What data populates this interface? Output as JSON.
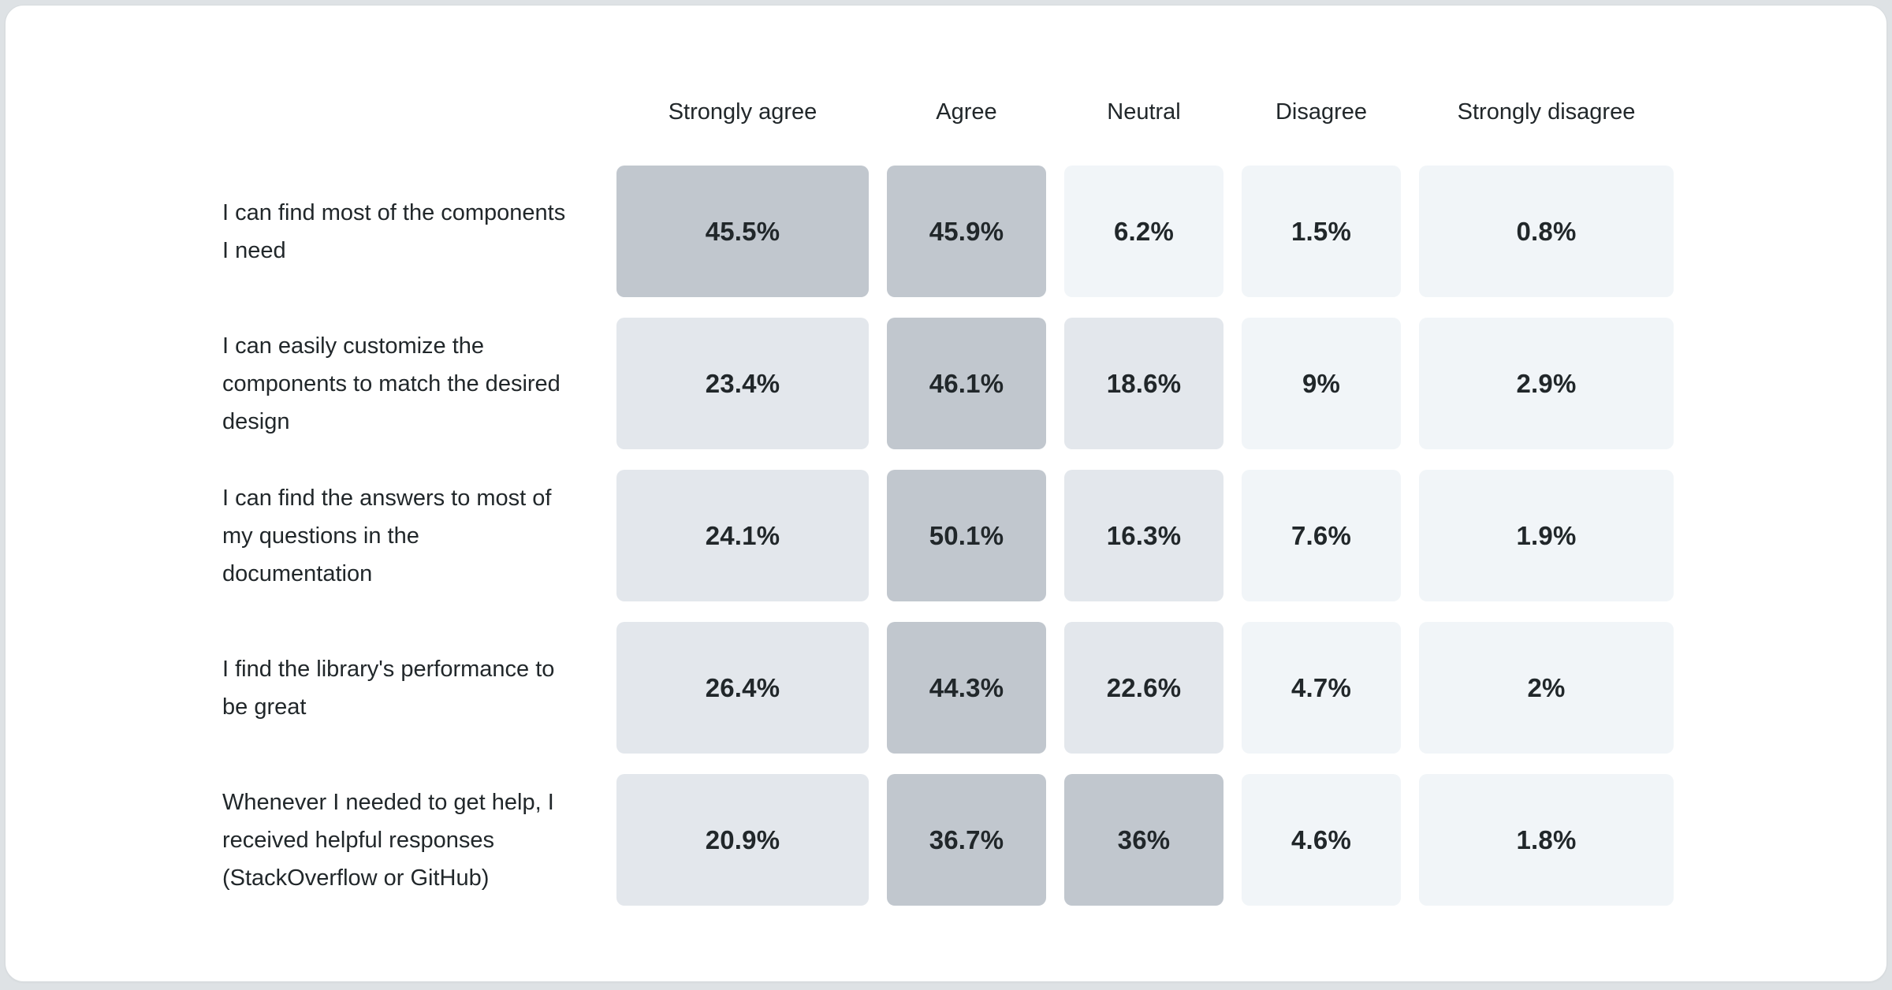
{
  "colors": {
    "page_bg": "#dee2e5",
    "card_bg": "#ffffff",
    "card_border": "#d8dcdf",
    "text": "#21272a"
  },
  "chart_data": {
    "type": "heatmap",
    "title": "",
    "columns": [
      "Strongly agree",
      "Agree",
      "Neutral",
      "Disagree",
      "Strongly disagree"
    ],
    "color_scale": {
      "note": "cell shade bins by percentage value, darker = higher",
      "bins": [
        {
          "min": 30,
          "color": "#c1c7ce"
        },
        {
          "min": 12,
          "color": "#e3e7ec"
        },
        {
          "min": 0,
          "color": "#f1f5f8"
        }
      ]
    },
    "rows": [
      {
        "label": "I can find most of the components I need",
        "values": [
          {
            "display": "45.5%",
            "value": 45.5
          },
          {
            "display": "45.9%",
            "value": 45.9
          },
          {
            "display": "6.2%",
            "value": 6.2
          },
          {
            "display": "1.5%",
            "value": 1.5
          },
          {
            "display": "0.8%",
            "value": 0.8
          }
        ]
      },
      {
        "label": "I can easily customize the components to match the desired design",
        "values": [
          {
            "display": "23.4%",
            "value": 23.4
          },
          {
            "display": "46.1%",
            "value": 46.1
          },
          {
            "display": "18.6%",
            "value": 18.6
          },
          {
            "display": "9%",
            "value": 9
          },
          {
            "display": "2.9%",
            "value": 2.9
          }
        ]
      },
      {
        "label": "I can find the answers to most of my questions in the documentation",
        "values": [
          {
            "display": "24.1%",
            "value": 24.1
          },
          {
            "display": "50.1%",
            "value": 50.1
          },
          {
            "display": "16.3%",
            "value": 16.3
          },
          {
            "display": "7.6%",
            "value": 7.6
          },
          {
            "display": "1.9%",
            "value": 1.9
          }
        ]
      },
      {
        "label": "I find the library's performance to be great",
        "values": [
          {
            "display": "26.4%",
            "value": 26.4
          },
          {
            "display": "44.3%",
            "value": 44.3
          },
          {
            "display": "22.6%",
            "value": 22.6
          },
          {
            "display": "4.7%",
            "value": 4.7
          },
          {
            "display": "2%",
            "value": 2
          }
        ]
      },
      {
        "label": "Whenever I needed to get help, I received helpful responses (StackOverflow or GitHub)",
        "values": [
          {
            "display": "20.9%",
            "value": 20.9
          },
          {
            "display": "36.7%",
            "value": 36.7
          },
          {
            "display": "36%",
            "value": 36
          },
          {
            "display": "4.6%",
            "value": 4.6
          },
          {
            "display": "1.8%",
            "value": 1.8
          }
        ]
      }
    ]
  }
}
